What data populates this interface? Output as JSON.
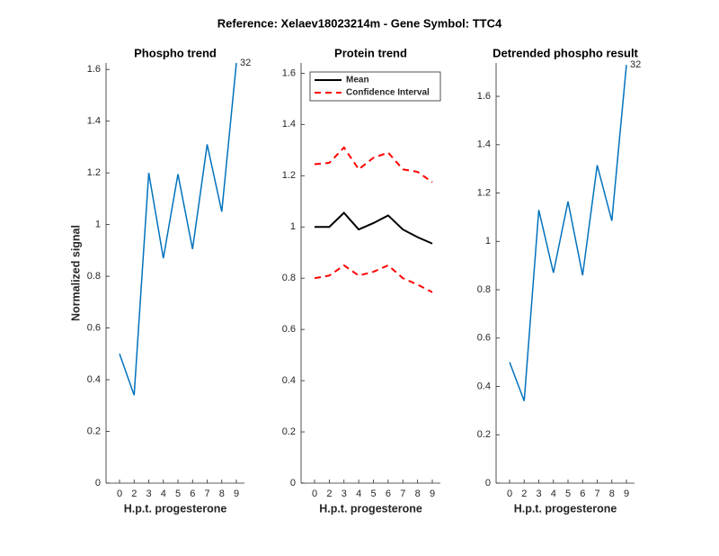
{
  "title": "Reference:  Xelaev18023214m - Gene Symbol:  TTC4",
  "chart_data": [
    {
      "type": "line",
      "title": "Phospho trend",
      "xlabel": "H.p.t. progesterone",
      "ylabel": "Normalized signal",
      "categories": [
        "0",
        "2",
        "3",
        "4",
        "5",
        "6",
        "7",
        "8",
        "9"
      ],
      "series": [
        {
          "name": null,
          "color": "#0072bd",
          "values": [
            0.5,
            0.34,
            1.2,
            0.87,
            1.195,
            0.905,
            1.31,
            1.05,
            1.625
          ]
        }
      ],
      "annotation": "32",
      "ylim": [
        0,
        1.625
      ],
      "yticks": [
        0,
        0.2,
        0.4,
        0.6,
        0.8,
        1,
        1.2,
        1.4,
        1.6
      ]
    },
    {
      "type": "line",
      "title": "Protein trend",
      "xlabel": "H.p.t. progesterone",
      "categories": [
        "0",
        "2",
        "3",
        "4",
        "5",
        "6",
        "7",
        "8",
        "9"
      ],
      "series": [
        {
          "name": "Mean",
          "color": "#000000",
          "values": [
            1,
            1,
            1.055,
            0.99,
            1.015,
            1.045,
            0.99,
            0.96,
            0.935
          ]
        },
        {
          "name": "Confidence Interval",
          "color": "#ff0000",
          "dashed": true,
          "values": [
            1.245,
            1.25,
            1.31,
            1.225,
            1.27,
            1.29,
            1.225,
            1.215,
            1.175
          ],
          "lower": [
            0.8,
            0.81,
            0.85,
            0.81,
            0.825,
            0.85,
            0.8,
            0.775,
            0.745
          ]
        }
      ],
      "legend": "top-right",
      "ylim": [
        0,
        1.64
      ],
      "yticks": [
        0,
        0.2,
        0.4,
        0.6,
        0.8,
        1,
        1.2,
        1.4,
        1.6
      ]
    },
    {
      "type": "line",
      "title": "Detrended phospho result",
      "xlabel": "H.p.t. progesterone",
      "categories": [
        "0",
        "2",
        "3",
        "4",
        "5",
        "6",
        "7",
        "8",
        "9"
      ],
      "series": [
        {
          "name": null,
          "color": "#0072bd",
          "values": [
            0.5,
            0.34,
            1.13,
            0.87,
            1.165,
            0.86,
            1.315,
            1.085,
            1.73
          ]
        }
      ],
      "annotation": "32",
      "ylim": [
        0,
        1.738
      ],
      "yticks": [
        0,
        0.2,
        0.4,
        0.6,
        0.8,
        1,
        1.2,
        1.4,
        1.6
      ]
    }
  ]
}
